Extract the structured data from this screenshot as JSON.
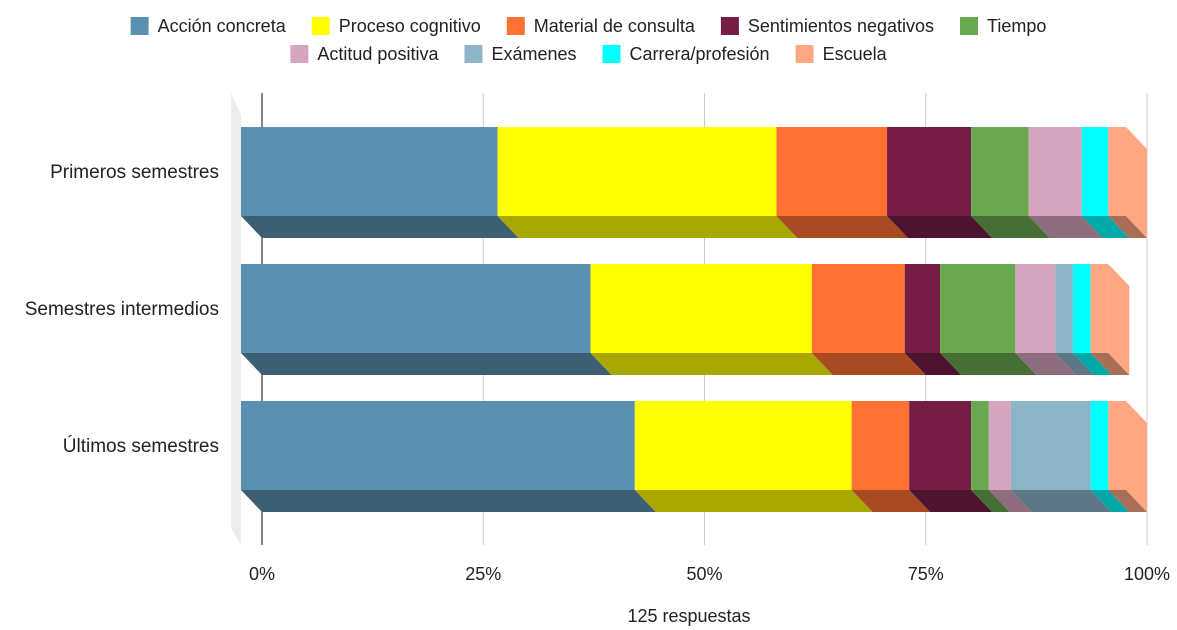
{
  "chart_data": {
    "type": "bar",
    "orientation": "horizontal",
    "stacked": "percent",
    "style": "3d",
    "xlabel": "125 respuestas",
    "x_ticks": [
      "0%",
      "25%",
      "50%",
      "75%",
      "100%"
    ],
    "xlim": [
      0,
      100
    ],
    "grid": true,
    "legend_position": "top",
    "categories": [
      "Primeros semestres",
      "Semestres intermedios",
      "Últimos semestres"
    ],
    "series": [
      {
        "name": "Acción concreta",
        "color": "#5b90b0",
        "values": [
          29.0,
          39.5,
          44.5
        ]
      },
      {
        "name": "Proceso cognitivo",
        "color": "#ffff00",
        "values": [
          31.5,
          25.0,
          24.5
        ]
      },
      {
        "name": "Material de consulta",
        "color": "#ff7033",
        "values": [
          12.5,
          10.5,
          6.5
        ]
      },
      {
        "name": "Sentimientos negativos",
        "color": "#761d46",
        "values": [
          9.5,
          4.0,
          7.0
        ]
      },
      {
        "name": "Tiempo",
        "color": "#69a84f",
        "values": [
          6.5,
          8.5,
          2.0
        ]
      },
      {
        "name": "Actitud positiva",
        "color": "#d6a5bf",
        "values": [
          6.0,
          4.5,
          2.5
        ]
      },
      {
        "name": "Exámenes",
        "color": "#8db5c8",
        "values": [
          0.0,
          2.0,
          9.0
        ]
      },
      {
        "name": "Carrera/profesión",
        "color": "#00ffff",
        "values": [
          3.0,
          2.0,
          2.0
        ]
      },
      {
        "name": "Escuela",
        "color": "#ffa783",
        "values": [
          2.0,
          2.0,
          2.0
        ]
      }
    ]
  }
}
